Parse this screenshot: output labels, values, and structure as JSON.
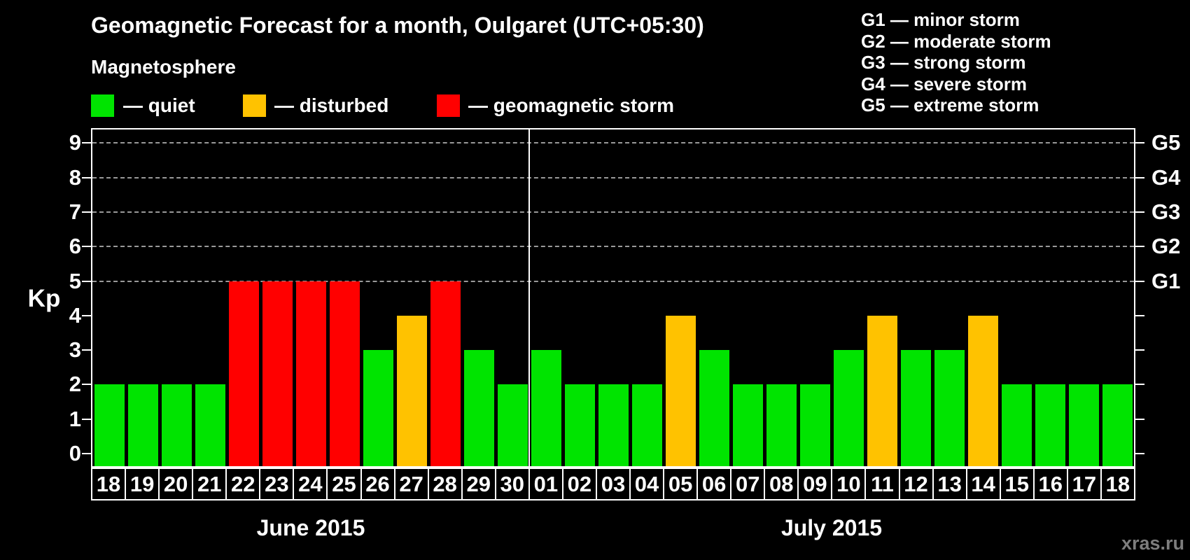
{
  "header": {
    "title": "Geomagnetic Forecast for a month, Oulgaret (UTC+05:30)",
    "subtitle": "Magnetosphere"
  },
  "legend": {
    "items": [
      {
        "name": "quiet",
        "label": "— quiet",
        "color_hex": "#00e400"
      },
      {
        "name": "disturbed",
        "label": "— disturbed",
        "color_hex": "#ffc200"
      },
      {
        "name": "storm",
        "label": "— geomagnetic storm",
        "color_hex": "#ff0000"
      }
    ]
  },
  "g_legend": {
    "lines": [
      "G1 — minor storm",
      "G2 — moderate storm",
      "G3 — strong storm",
      "G4 — severe storm",
      "G5 — extreme storm"
    ]
  },
  "watermark": "xras.ru",
  "chart_data": {
    "type": "bar",
    "title": "Geomagnetic Forecast for a month, Oulgaret (UTC+05:30)",
    "ylabel": "Kp",
    "ylim": [
      0,
      9
    ],
    "yticks": [
      0,
      1,
      2,
      3,
      4,
      5,
      6,
      7,
      8,
      9
    ],
    "gridlines_at": [
      5,
      6,
      7,
      8,
      9
    ],
    "grid": "dashed horizontal at storm levels only",
    "legend_position": "top",
    "right_axis_labels": [
      {
        "kp": 5,
        "label": "G1"
      },
      {
        "kp": 6,
        "label": "G2"
      },
      {
        "kp": 7,
        "label": "G3"
      },
      {
        "kp": 8,
        "label": "G4"
      },
      {
        "kp": 9,
        "label": "G5"
      }
    ],
    "state_colors": {
      "quiet": "#00e400",
      "disturbed": "#ffc200",
      "storm": "#ff0000"
    },
    "months": [
      {
        "label": "June 2015",
        "days": [
          "18",
          "19",
          "20",
          "21",
          "22",
          "23",
          "24",
          "25",
          "26",
          "27",
          "28",
          "29",
          "30"
        ],
        "values": [
          2,
          2,
          2,
          2,
          5,
          5,
          5,
          5,
          3,
          4,
          5,
          3,
          2
        ],
        "states": [
          "quiet",
          "quiet",
          "quiet",
          "quiet",
          "storm",
          "storm",
          "storm",
          "storm",
          "quiet",
          "disturbed",
          "storm",
          "quiet",
          "quiet"
        ]
      },
      {
        "label": "July 2015",
        "days": [
          "01",
          "02",
          "03",
          "04",
          "05",
          "06",
          "07",
          "08",
          "09",
          "10",
          "11",
          "12",
          "13",
          "14",
          "15",
          "16",
          "17",
          "18"
        ],
        "values": [
          3,
          2,
          2,
          2,
          4,
          3,
          2,
          2,
          2,
          3,
          4,
          3,
          3,
          4,
          2,
          2,
          2,
          2
        ],
        "states": [
          "quiet",
          "quiet",
          "quiet",
          "quiet",
          "disturbed",
          "quiet",
          "quiet",
          "quiet",
          "quiet",
          "quiet",
          "disturbed",
          "quiet",
          "quiet",
          "disturbed",
          "quiet",
          "quiet",
          "quiet",
          "quiet"
        ]
      }
    ]
  }
}
